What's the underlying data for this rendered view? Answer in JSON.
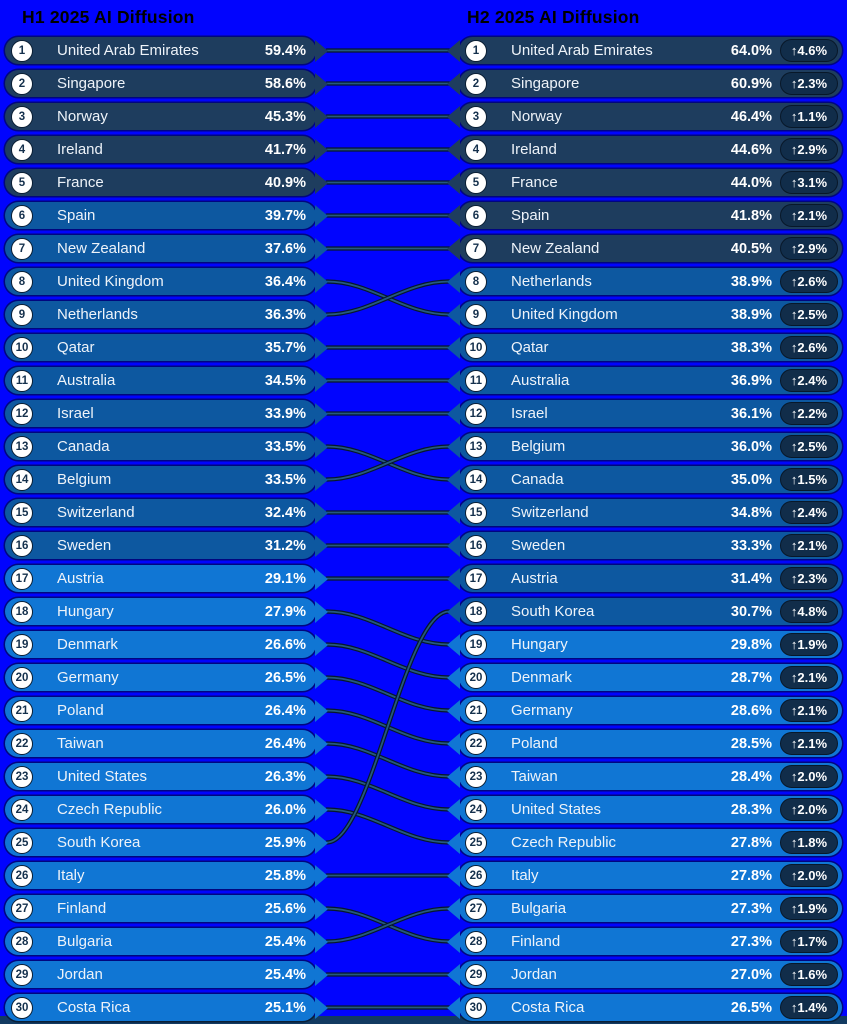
{
  "colors": {
    "background": "#0104fe",
    "tier_40_plus": "#1e3d5e",
    "tier_30_to_40": "#0d58a0",
    "tier_below_30": "#1076d4",
    "change_badge": "#112d4a",
    "rank_circle": "#ffffff",
    "row_text": "#eef3f9",
    "header_text": "#000000",
    "bottom_strip": "#123a61"
  },
  "tier_rule": {
    "dark_min_pct": 40,
    "mid_min_pct": 30
  },
  "chart_data": {
    "type": "table",
    "title": "AI Diffusion ranking: H1 2025 vs H2 2025",
    "legend_position": "none",
    "grid": false,
    "series": [
      {
        "name": "H1 2025 AI Diffusion",
        "rows": [
          {
            "rank": "1",
            "country": "United Arab Emirates",
            "value": "59.4%"
          },
          {
            "rank": "2",
            "country": "Singapore",
            "value": "58.6%"
          },
          {
            "rank": "3",
            "country": "Norway",
            "value": "45.3%"
          },
          {
            "rank": "4",
            "country": "Ireland",
            "value": "41.7%"
          },
          {
            "rank": "5",
            "country": "France",
            "value": "40.9%"
          },
          {
            "rank": "6",
            "country": "Spain",
            "value": "39.7%"
          },
          {
            "rank": "7",
            "country": "New Zealand",
            "value": "37.6%"
          },
          {
            "rank": "8",
            "country": "United Kingdom",
            "value": "36.4%"
          },
          {
            "rank": "9",
            "country": "Netherlands",
            "value": "36.3%"
          },
          {
            "rank": "10",
            "country": "Qatar",
            "value": "35.7%"
          },
          {
            "rank": "11",
            "country": "Australia",
            "value": "34.5%"
          },
          {
            "rank": "12",
            "country": "Israel",
            "value": "33.9%"
          },
          {
            "rank": "13",
            "country": "Canada",
            "value": "33.5%"
          },
          {
            "rank": "14",
            "country": "Belgium",
            "value": "33.5%"
          },
          {
            "rank": "15",
            "country": "Switzerland",
            "value": "32.4%"
          },
          {
            "rank": "16",
            "country": "Sweden",
            "value": "31.2%"
          },
          {
            "rank": "17",
            "country": "Austria",
            "value": "29.1%"
          },
          {
            "rank": "18",
            "country": "Hungary",
            "value": "27.9%"
          },
          {
            "rank": "19",
            "country": "Denmark",
            "value": "26.6%"
          },
          {
            "rank": "20",
            "country": "Germany",
            "value": "26.5%"
          },
          {
            "rank": "21",
            "country": "Poland",
            "value": "26.4%"
          },
          {
            "rank": "22",
            "country": "Taiwan",
            "value": "26.4%"
          },
          {
            "rank": "23",
            "country": "United States",
            "value": "26.3%"
          },
          {
            "rank": "24",
            "country": "Czech Republic",
            "value": "26.0%"
          },
          {
            "rank": "25",
            "country": "South Korea",
            "value": "25.9%"
          },
          {
            "rank": "26",
            "country": "Italy",
            "value": "25.8%"
          },
          {
            "rank": "27",
            "country": "Finland",
            "value": "25.6%"
          },
          {
            "rank": "28",
            "country": "Bulgaria",
            "value": "25.4%"
          },
          {
            "rank": "29",
            "country": "Jordan",
            "value": "25.4%"
          },
          {
            "rank": "30",
            "country": "Costa Rica",
            "value": "25.1%"
          }
        ]
      },
      {
        "name": "H2 2025 AI Diffusion",
        "rows": [
          {
            "rank": "1",
            "country": "United Arab Emirates",
            "value": "64.0%",
            "change": "↑4.6%"
          },
          {
            "rank": "2",
            "country": "Singapore",
            "value": "60.9%",
            "change": "↑2.3%"
          },
          {
            "rank": "3",
            "country": "Norway",
            "value": "46.4%",
            "change": "↑1.1%"
          },
          {
            "rank": "4",
            "country": "Ireland",
            "value": "44.6%",
            "change": "↑2.9%"
          },
          {
            "rank": "5",
            "country": "France",
            "value": "44.0%",
            "change": "↑3.1%"
          },
          {
            "rank": "6",
            "country": "Spain",
            "value": "41.8%",
            "change": "↑2.1%"
          },
          {
            "rank": "7",
            "country": "New Zealand",
            "value": "40.5%",
            "change": "↑2.9%"
          },
          {
            "rank": "8",
            "country": "Netherlands",
            "value": "38.9%",
            "change": "↑2.6%"
          },
          {
            "rank": "9",
            "country": "United Kingdom",
            "value": "38.9%",
            "change": "↑2.5%"
          },
          {
            "rank": "10",
            "country": "Qatar",
            "value": "38.3%",
            "change": "↑2.6%"
          },
          {
            "rank": "11",
            "country": "Australia",
            "value": "36.9%",
            "change": "↑2.4%"
          },
          {
            "rank": "12",
            "country": "Israel",
            "value": "36.1%",
            "change": "↑2.2%"
          },
          {
            "rank": "13",
            "country": "Belgium",
            "value": "36.0%",
            "change": "↑2.5%"
          },
          {
            "rank": "14",
            "country": "Canada",
            "value": "35.0%",
            "change": "↑1.5%"
          },
          {
            "rank": "15",
            "country": "Switzerland",
            "value": "34.8%",
            "change": "↑2.4%"
          },
          {
            "rank": "16",
            "country": "Sweden",
            "value": "33.3%",
            "change": "↑2.1%"
          },
          {
            "rank": "17",
            "country": "Austria",
            "value": "31.4%",
            "change": "↑2.3%"
          },
          {
            "rank": "18",
            "country": "South Korea",
            "value": "30.7%",
            "change": "↑4.8%"
          },
          {
            "rank": "19",
            "country": "Hungary",
            "value": "29.8%",
            "change": "↑1.9%"
          },
          {
            "rank": "20",
            "country": "Denmark",
            "value": "28.7%",
            "change": "↑2.1%"
          },
          {
            "rank": "21",
            "country": "Germany",
            "value": "28.6%",
            "change": "↑2.1%"
          },
          {
            "rank": "22",
            "country": "Poland",
            "value": "28.5%",
            "change": "↑2.1%"
          },
          {
            "rank": "23",
            "country": "Taiwan",
            "value": "28.4%",
            "change": "↑2.0%"
          },
          {
            "rank": "24",
            "country": "United States",
            "value": "28.3%",
            "change": "↑2.0%"
          },
          {
            "rank": "25",
            "country": "Czech Republic",
            "value": "27.8%",
            "change": "↑1.8%"
          },
          {
            "rank": "26",
            "country": "Italy",
            "value": "27.8%",
            "change": "↑2.0%"
          },
          {
            "rank": "27",
            "country": "Bulgaria",
            "value": "27.3%",
            "change": "↑1.9%"
          },
          {
            "rank": "28",
            "country": "Finland",
            "value": "27.3%",
            "change": "↑1.7%"
          },
          {
            "rank": "29",
            "country": "Jordan",
            "value": "27.0%",
            "change": "↑1.6%"
          },
          {
            "rank": "30",
            "country": "Costa Rica",
            "value": "26.5%",
            "change": "↑1.4%"
          }
        ]
      }
    ]
  }
}
